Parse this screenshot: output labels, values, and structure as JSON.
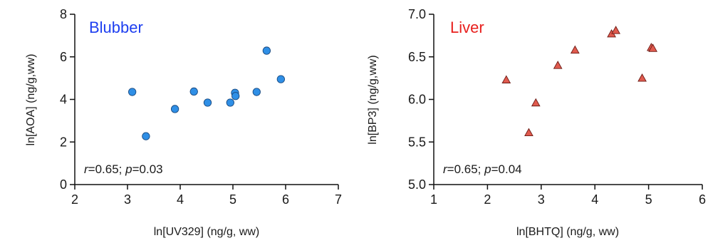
{
  "chart_data": [
    {
      "type": "scatter",
      "title": "Blubber",
      "title_color": "#1e3ff0",
      "marker": "circle",
      "marker_color": "#2f8fe6",
      "xlabel": "ln[UV329] (ng/g, ww)",
      "ylabel": "ln[AOA] (ng/g,ww)",
      "xlim": [
        2,
        7
      ],
      "ylim": [
        0,
        8
      ],
      "xticks": [
        2,
        3,
        4,
        5,
        6,
        7
      ],
      "yticks": [
        0,
        2,
        4,
        6,
        8
      ],
      "xtick_labels": [
        "2",
        "3",
        "4",
        "5",
        "6",
        "7"
      ],
      "ytick_labels": [
        "0",
        "2",
        "4",
        "6",
        "8"
      ],
      "grid": false,
      "stat_r": "r",
      "stat_r_value": "=0.65; ",
      "stat_p": "p",
      "stat_p_value": "=0.03",
      "points": [
        {
          "x": 3.09,
          "y": 4.35
        },
        {
          "x": 3.35,
          "y": 2.27
        },
        {
          "x": 3.9,
          "y": 3.55
        },
        {
          "x": 4.26,
          "y": 4.37
        },
        {
          "x": 4.52,
          "y": 3.85
        },
        {
          "x": 4.95,
          "y": 3.85
        },
        {
          "x": 5.04,
          "y": 4.31
        },
        {
          "x": 5.05,
          "y": 4.16
        },
        {
          "x": 5.45,
          "y": 4.35
        },
        {
          "x": 5.64,
          "y": 6.29
        },
        {
          "x": 5.91,
          "y": 4.95
        }
      ]
    },
    {
      "type": "scatter",
      "title": "Liver",
      "title_color": "#e8201e",
      "marker": "triangle",
      "marker_color": "#e05a4e",
      "xlabel": "ln[BHTQ] (ng/g, ww)",
      "ylabel": "ln[BP3] (ng/g,ww)",
      "xlim": [
        1,
        6
      ],
      "ylim": [
        5.0,
        7.0
      ],
      "xticks": [
        1,
        2,
        3,
        4,
        5,
        6
      ],
      "yticks": [
        5.0,
        5.5,
        6.0,
        6.5,
        7.0
      ],
      "xtick_labels": [
        "1",
        "2",
        "3",
        "4",
        "5",
        "6"
      ],
      "ytick_labels": [
        "5.0",
        "5.5",
        "6.0",
        "6.5",
        "7.0"
      ],
      "grid": false,
      "stat_r": "r",
      "stat_r_value": "=0.65; ",
      "stat_p": "p",
      "stat_p_value": "=0.04",
      "points": [
        {
          "x": 2.35,
          "y": 6.23
        },
        {
          "x": 2.77,
          "y": 5.61
        },
        {
          "x": 2.9,
          "y": 5.96
        },
        {
          "x": 3.31,
          "y": 6.4
        },
        {
          "x": 3.63,
          "y": 6.58
        },
        {
          "x": 4.31,
          "y": 6.77
        },
        {
          "x": 4.39,
          "y": 6.81
        },
        {
          "x": 4.88,
          "y": 6.25
        },
        {
          "x": 5.05,
          "y": 6.61
        },
        {
          "x": 5.08,
          "y": 6.6
        }
      ]
    }
  ]
}
